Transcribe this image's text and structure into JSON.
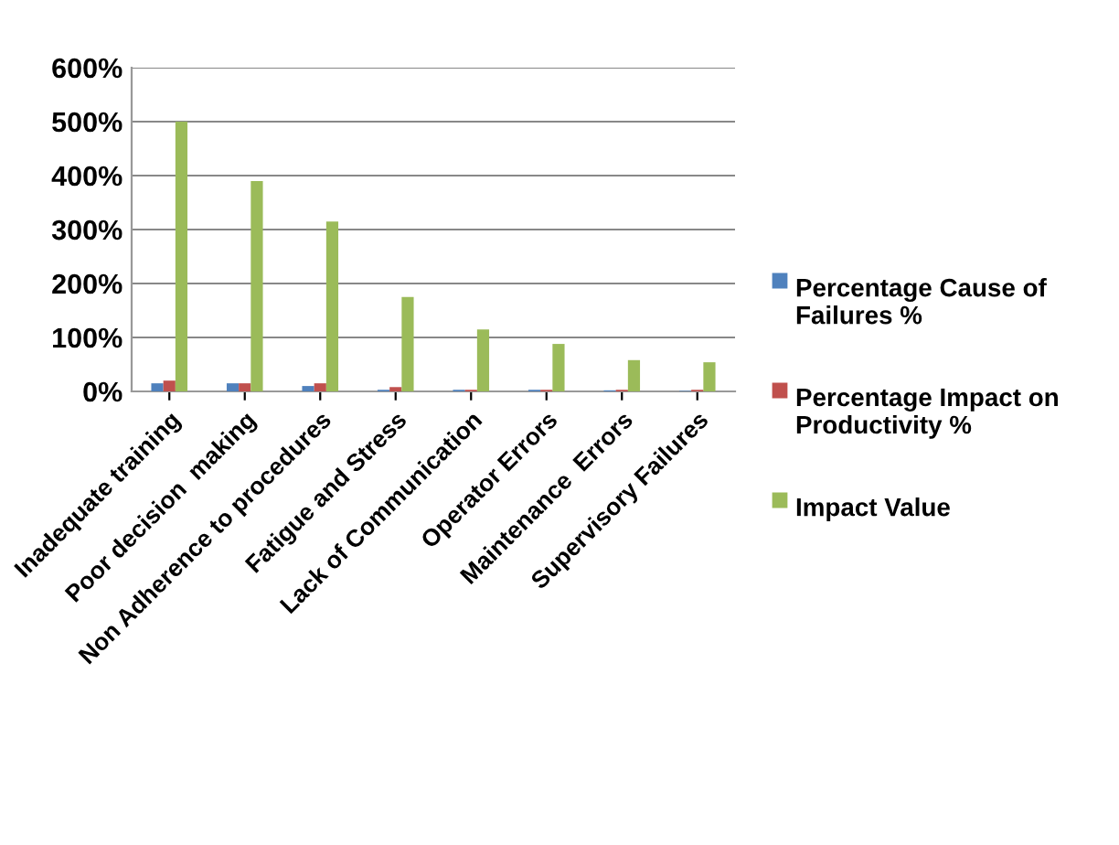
{
  "chart_data": {
    "type": "bar",
    "categories": [
      "Inadequate training",
      "Poor decision  making",
      "Non Adherence to procedures",
      "Fatigue and Stress",
      "Lack of Communication",
      "Operator Errors",
      "Maintenance  Errors",
      "Supervisory Failures"
    ],
    "series": [
      {
        "name": "Percentage Cause of Failures %",
        "color": "#4f81bd",
        "values": [
          15,
          15,
          10,
          3,
          3,
          3,
          2,
          1
        ]
      },
      {
        "name": "Percentage Impact on Productivity %",
        "color": "#c0504d",
        "values": [
          20,
          15,
          15,
          8,
          3,
          3,
          3,
          3
        ]
      },
      {
        "name": "Impact Value",
        "color": "#9bbb59",
        "values": [
          500,
          390,
          315,
          175,
          115,
          88,
          58,
          54
        ]
      }
    ],
    "ylim": [
      0,
      600
    ],
    "yticks": [
      {
        "value": 0,
        "label": "0%"
      },
      {
        "value": 100,
        "label": "100%"
      },
      {
        "value": 200,
        "label": "200%"
      },
      {
        "value": 300,
        "label": "300%"
      },
      {
        "value": 400,
        "label": "400%"
      },
      {
        "value": 500,
        "label": "500%"
      },
      {
        "value": 600,
        "label": "600%"
      }
    ],
    "grid": "y",
    "legend": "right"
  }
}
